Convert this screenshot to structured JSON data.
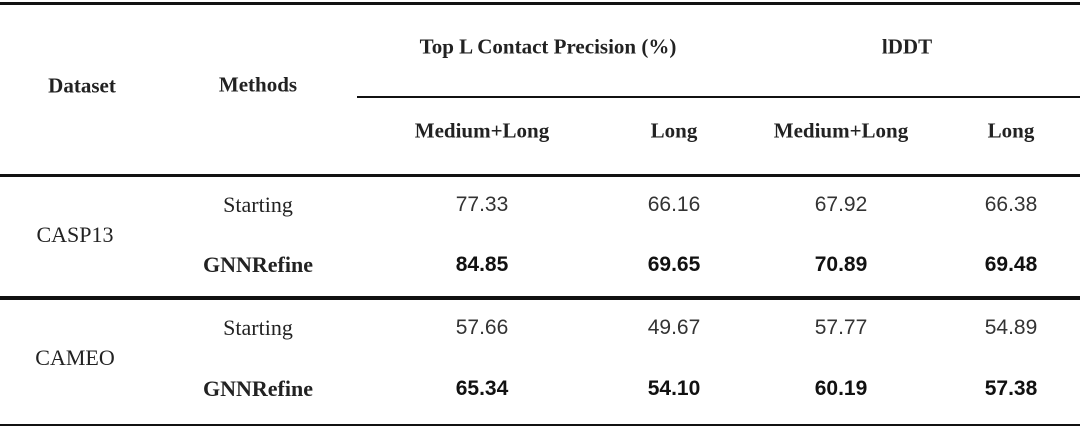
{
  "table": {
    "header": {
      "dataset": "Dataset",
      "methods": "Methods",
      "group_precision": "Top L Contact Precision (%)",
      "group_lddt": "lDDT",
      "sub": [
        "Medium+Long",
        "Long",
        "Medium+Long",
        "Long"
      ]
    },
    "groups": [
      {
        "dataset": "CASP13",
        "rows": [
          {
            "method": "Starting",
            "bold": false,
            "values": [
              "77.33",
              "66.16",
              "67.92",
              "66.38"
            ]
          },
          {
            "method": "GNNRefine",
            "bold": true,
            "values": [
              "84.85",
              "69.65",
              "70.89",
              "69.48"
            ]
          }
        ]
      },
      {
        "dataset": "CAMEO",
        "rows": [
          {
            "method": "Starting",
            "bold": false,
            "values": [
              "57.66",
              "49.67",
              "57.77",
              "54.89"
            ]
          },
          {
            "method": "GNNRefine",
            "bold": true,
            "values": [
              "65.34",
              "54.10",
              "60.19",
              "57.38"
            ]
          }
        ]
      }
    ]
  }
}
